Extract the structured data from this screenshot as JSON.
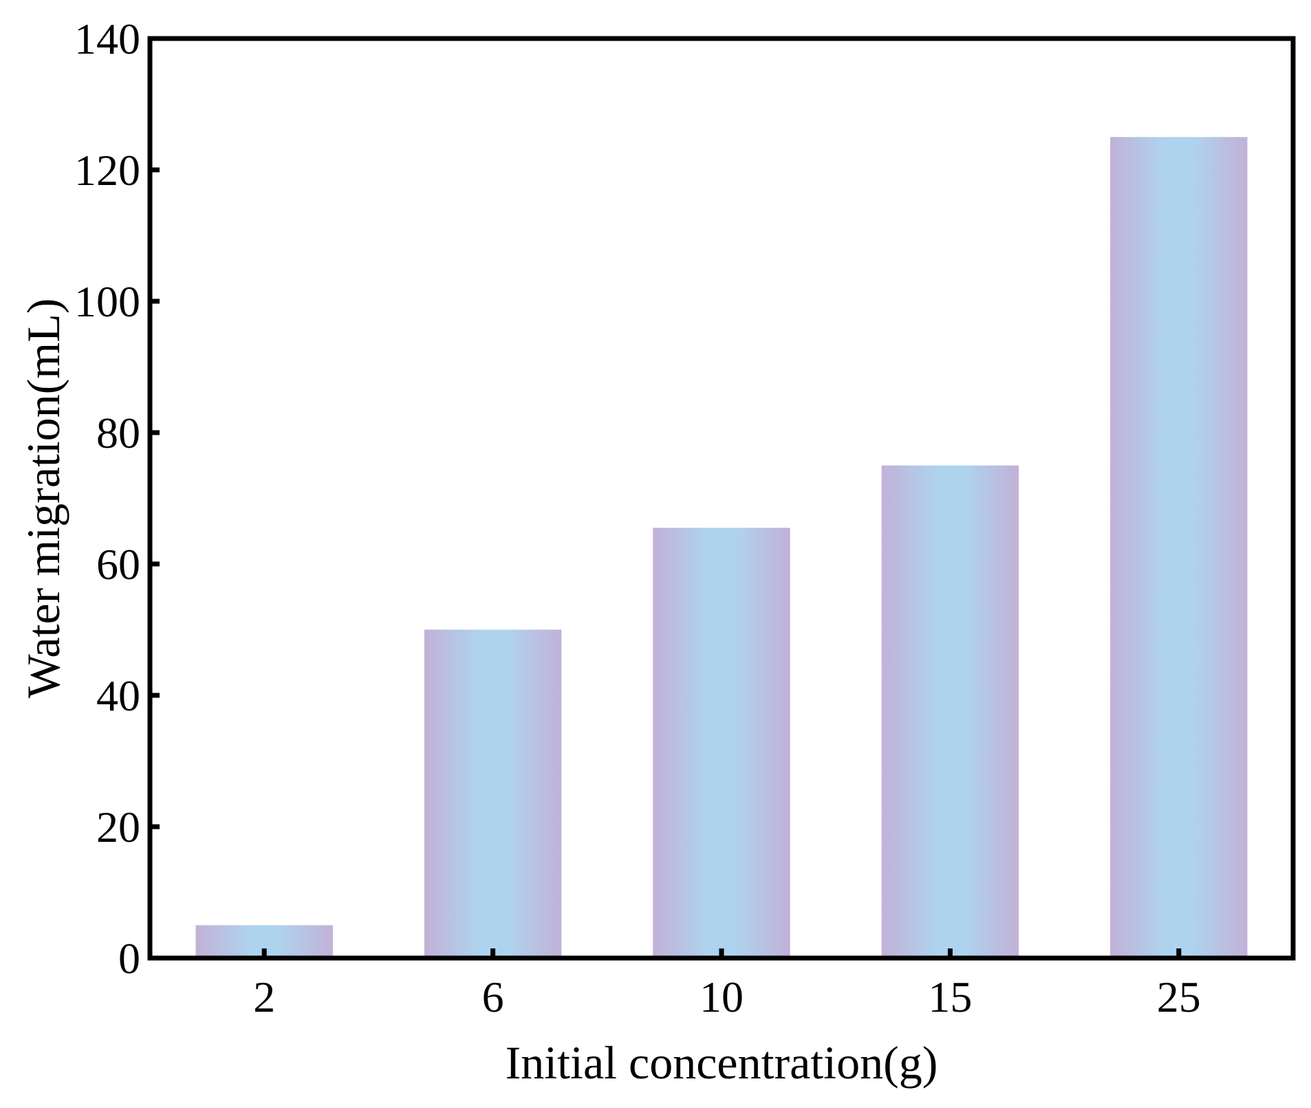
{
  "chart_data": {
    "type": "bar",
    "categories": [
      "2",
      "6",
      "10",
      "15",
      "25"
    ],
    "values": [
      5,
      50,
      65.5,
      75,
      125
    ],
    "title": "",
    "xlabel": "Initial concentration(g)",
    "ylabel": "Water migration(mL)",
    "ylim": [
      0,
      140
    ],
    "yticks": [
      "0",
      "20",
      "40",
      "60",
      "80",
      "100",
      "120",
      "140"
    ],
    "grid": false,
    "legend": "none",
    "bar_gradient": {
      "edge_color": "#c2b1d7",
      "center_color": "#aed3ee"
    },
    "frame_color": "#000000"
  }
}
